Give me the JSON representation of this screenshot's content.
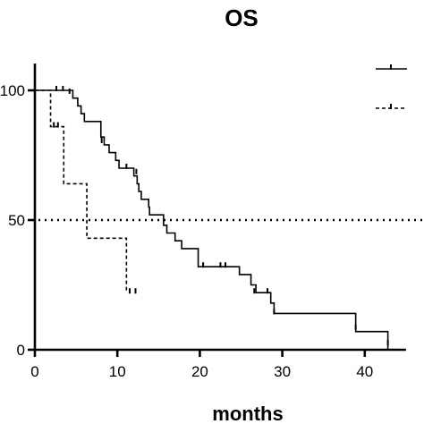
{
  "chart_data": {
    "type": "line",
    "title": "OS",
    "xlabel": "months",
    "ylabel": "",
    "xlim": [
      0,
      45
    ],
    "ylim": [
      0,
      100
    ],
    "x_ticks": [
      0,
      10,
      20,
      30,
      40
    ],
    "y_ticks": [
      0,
      50,
      100
    ],
    "y_tick_labels": [
      "0",
      "50",
      "100"
    ],
    "reference_line": {
      "y": 50,
      "style": "dotted"
    },
    "legend": {
      "placement": "top-right",
      "entries": [
        {
          "style": "solid"
        },
        {
          "style": "dashed"
        }
      ]
    },
    "series": [
      {
        "style": "solid",
        "steps": [
          [
            0,
            100
          ],
          [
            4.6,
            97
          ],
          [
            5.2,
            94
          ],
          [
            5.6,
            91
          ],
          [
            6.0,
            88
          ],
          [
            8.0,
            82
          ],
          [
            8.4,
            79
          ],
          [
            9.0,
            76
          ],
          [
            9.8,
            73
          ],
          [
            10.2,
            70
          ],
          [
            12.0,
            67
          ],
          [
            12.4,
            64
          ],
          [
            12.6,
            61
          ],
          [
            12.9,
            58
          ],
          [
            13.8,
            55
          ],
          [
            13.9,
            52
          ],
          [
            15.6,
            48
          ],
          [
            16.0,
            45
          ],
          [
            17.0,
            42
          ],
          [
            17.8,
            39
          ],
          [
            19.8,
            32
          ],
          [
            24.8,
            29
          ],
          [
            26.2,
            25
          ],
          [
            26.8,
            22
          ],
          [
            28.6,
            18
          ],
          [
            29.0,
            14
          ],
          [
            38.9,
            7
          ],
          [
            42.8,
            0
          ]
        ],
        "censored": [
          [
            2.6,
            100
          ],
          [
            3.4,
            100
          ],
          [
            4.2,
            99
          ],
          [
            8.1,
            80
          ],
          [
            11.1,
            70
          ],
          [
            12.3,
            68
          ],
          [
            20.4,
            32
          ],
          [
            22.5,
            32
          ],
          [
            23.1,
            32
          ],
          [
            26.6,
            22
          ],
          [
            28.2,
            22
          ],
          [
            29.0,
            14
          ],
          [
            38.9,
            8
          ],
          [
            42.8,
            2
          ]
        ]
      },
      {
        "style": "dashed",
        "steps": [
          [
            0,
            100
          ],
          [
            1.9,
            86
          ],
          [
            3.5,
            64
          ],
          [
            6.3,
            43
          ],
          [
            11.1,
            22
          ]
        ],
        "censored": [
          [
            2.3,
            86
          ],
          [
            2.8,
            86
          ],
          [
            11.5,
            22
          ],
          [
            12.2,
            22
          ]
        ]
      }
    ]
  }
}
